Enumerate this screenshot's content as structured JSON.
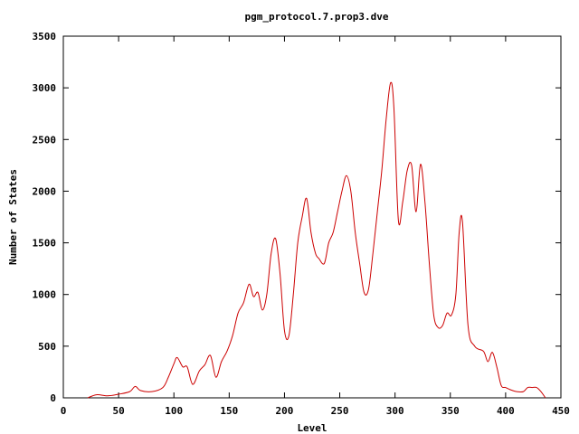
{
  "chart_data": {
    "type": "line",
    "title": "pgm_protocol.7.prop3.dve",
    "xlabel": "Level",
    "ylabel": "Number of States",
    "xlim": [
      0,
      450
    ],
    "ylim": [
      0,
      3500
    ],
    "xticks": [
      0,
      50,
      100,
      150,
      200,
      250,
      300,
      350,
      400,
      450
    ],
    "yticks": [
      0,
      500,
      1000,
      1500,
      2000,
      2500,
      3000,
      3500
    ],
    "grid": false,
    "legend": "none",
    "series_color": "#cc0000",
    "series": [
      {
        "x": [
          22,
          30,
          40,
          50,
          60,
          65,
          70,
          80,
          90,
          95,
          100,
          103,
          108,
          112,
          117,
          123,
          128,
          133,
          138,
          143,
          148,
          153,
          158,
          163,
          168,
          172,
          176,
          180,
          184,
          188,
          192,
          196,
          200,
          204,
          208,
          212,
          216,
          220,
          224,
          228,
          231,
          236,
          240,
          244,
          248,
          252,
          256,
          260,
          264,
          268,
          272,
          276,
          280,
          284,
          288,
          292,
          296,
          299,
          303,
          307,
          311,
          315,
          319,
          323,
          327,
          331,
          335,
          339,
          343,
          347,
          351,
          355,
          358,
          361,
          366,
          372,
          380,
          384,
          388,
          392,
          396,
          400,
          404,
          410,
          416,
          420,
          424,
          428,
          432,
          436
        ],
        "y": [
          0,
          30,
          20,
          35,
          60,
          110,
          70,
          60,
          100,
          200,
          330,
          390,
          300,
          300,
          130,
          260,
          320,
          410,
          200,
          350,
          450,
          600,
          820,
          920,
          1100,
          980,
          1020,
          850,
          1000,
          1400,
          1540,
          1200,
          650,
          600,
          1000,
          1500,
          1750,
          1930,
          1600,
          1400,
          1350,
          1300,
          1500,
          1600,
          1800,
          2000,
          2150,
          2000,
          1600,
          1300,
          1020,
          1050,
          1400,
          1800,
          2200,
          2700,
          3050,
          2800,
          1720,
          1900,
          2200,
          2250,
          1800,
          2260,
          1900,
          1300,
          800,
          680,
          700,
          820,
          800,
          1000,
          1600,
          1700,
          700,
          500,
          450,
          350,
          440,
          300,
          120,
          100,
          80,
          60,
          60,
          100,
          100,
          100,
          60,
          0
        ]
      }
    ]
  }
}
